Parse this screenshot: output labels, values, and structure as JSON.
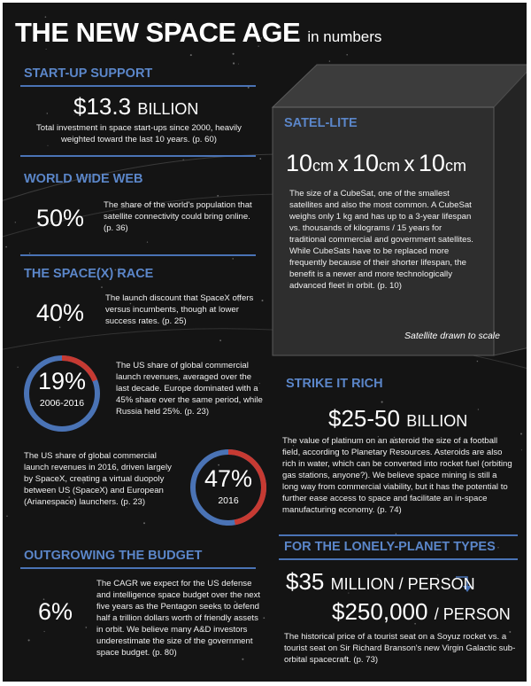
{
  "header": {
    "title": "THE NEW SPACE AGE",
    "subtitle": "in numbers"
  },
  "colors": {
    "background": "#141414",
    "heading": "#5b86c9",
    "accent_red": "#c63a32",
    "accent_blue": "#4a73b5",
    "cube_face": "#2e2e2e"
  },
  "startup": {
    "heading": "START-UP SUPPORT",
    "amount": "$13.3",
    "unit": "BILLION",
    "text": "Total investment in space start-ups since 2000, heavily weighted toward the last 10 years. (p. 60)"
  },
  "www": {
    "heading": "WORLD WIDE WEB",
    "pct": "50%",
    "text": "The share of the world's population that satellite connectivity could bring online. (p. 36)"
  },
  "spacex": {
    "heading": "THE SPACE(X) RACE",
    "stat1_pct": "40%",
    "stat1_text": "The launch discount that SpaceX offers versus incumbents, though at lower success rates. (p. 25)",
    "ring1_pct": "19%",
    "ring1_value": 19,
    "ring1_label": "2006-2016",
    "ring1_text": "The US share of global commercial launch revenues, averaged over the last decade. Europe dominated with a 45% share over the same period, while Russia held 25%. (p. 23)",
    "ring2_pct": "47%",
    "ring2_value": 47,
    "ring2_label": "2016",
    "ring2_text": "The US share of global commercial launch revenues in 2016, driven largely by SpaceX, creating a virtual duopoly between US (SpaceX) and European (Arianespace) launchers. (p. 23)"
  },
  "budget": {
    "heading": "OUTGROWING THE BUDGET",
    "pct": "6%",
    "text": "The CAGR we expect for the US defense and intelligence space budget over the next five years as the Pentagon seeks to defend half a trillion dollars worth of friendly assets in orbit. We believe many A&D investors underestimate the size of the government space budget. (p. 80)"
  },
  "satellite": {
    "heading": "SATEL-LITE",
    "dims": [
      "10",
      "cm",
      "x",
      "10",
      "cm",
      "x",
      "10",
      "cm"
    ],
    "text": "The size of a CubeSat, one of the smallest satellites and also the most common. A CubeSat weighs only 1 kg and has up to a 3-year lifespan vs. thousands of kilograms / 15 years for traditional commercial and government satellites. While CubeSats have to be replaced more frequently because of their shorter lifespan, the benefit is a newer and more technologically advanced fleet in orbit. (p. 10)",
    "caption": "Satellite drawn to scale"
  },
  "strike": {
    "heading": "STRIKE IT RICH",
    "amount": "$25-50",
    "unit": "BILLION",
    "text": "The value of platinum on an asteroid the size of a football field, according to Planetary Resources. Asteroids are also rich in water, which can be converted into rocket fuel (orbiting gas stations, anyone?). We believe space mining is still a long way from commercial viability, but it has the potential to further ease access to space and facilitate an in-space manufacturing economy. (p. 74)"
  },
  "lonely": {
    "heading": "FOR THE LONELY-PLANET TYPES",
    "amount1": "$35",
    "unit1": "MILLION / PERSON",
    "amount2": "$250,000",
    "unit2": "/ PERSON",
    "text": "The historical price of a tourist seat on a Soyuz rocket vs. a tourist seat on Sir Richard Branson's new Virgin Galactic sub-orbital spacecraft. (p. 73)"
  }
}
